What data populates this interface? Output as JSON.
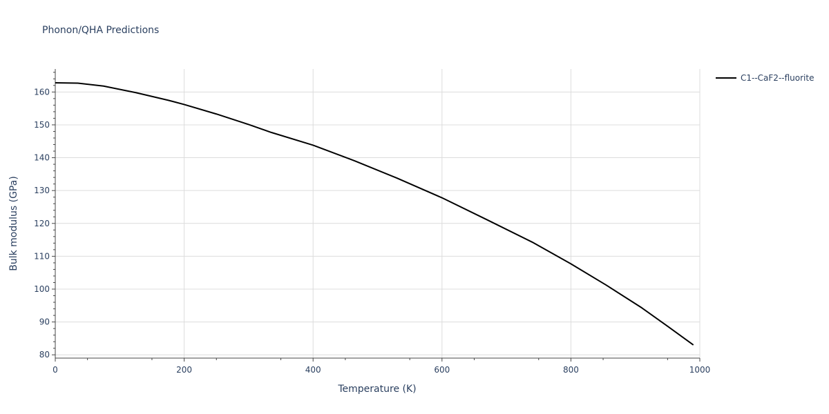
{
  "chart_data": {
    "type": "line",
    "title": "Phonon/QHA Predictions",
    "xlabel": "Temperature (K)",
    "ylabel": "Bulk modulus (GPa)",
    "xlim": [
      0,
      1000
    ],
    "ylim": [
      79,
      167
    ],
    "x_ticks": [
      0,
      200,
      400,
      600,
      800,
      1000
    ],
    "y_ticks": [
      80,
      90,
      100,
      110,
      120,
      130,
      140,
      150,
      160
    ],
    "grid": true,
    "legend_position": "top-right",
    "series": [
      {
        "name": "C1--CaF2--fluorite",
        "color": "#000000",
        "x": [
          0,
          35,
          75,
          125,
          175,
          200,
          250,
          300,
          335,
          400,
          465,
          530,
          600,
          670,
          740,
          800,
          855,
          910,
          950,
          990
        ],
        "y": [
          162.8,
          162.7,
          161.8,
          159.8,
          157.5,
          156.2,
          153.3,
          150.1,
          147.7,
          143.8,
          139.0,
          133.8,
          127.8,
          121.1,
          114.3,
          107.7,
          101.2,
          94.3,
          88.7,
          83.0
        ]
      }
    ]
  }
}
